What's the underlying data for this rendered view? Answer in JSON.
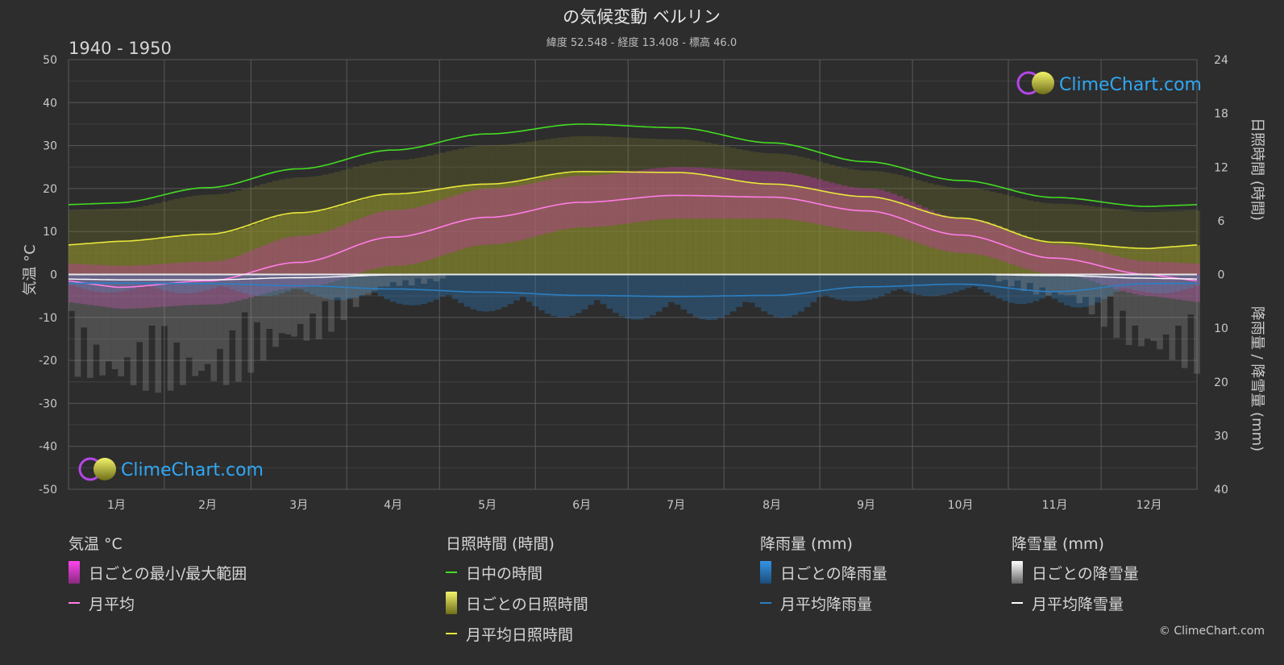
{
  "header": {
    "title": "の気候変動 ベルリン",
    "subtitle": "緯度 52.548 - 経度 13.408 - 標高 46.0",
    "period": "1940 - 1950"
  },
  "axes": {
    "left_label": "気温 °C",
    "right_top_label": "日照時間 (時間)",
    "right_bottom_label": "降雨量 / 降雪量 (mm)",
    "left_ticks": [
      "50",
      "40",
      "30",
      "20",
      "10",
      "0",
      "-10",
      "-20",
      "-30",
      "-40",
      "-50"
    ],
    "right_top_ticks": [
      "24",
      "18",
      "12",
      "6",
      "0"
    ],
    "right_bottom_ticks": [
      "10",
      "20",
      "30",
      "40"
    ],
    "months": [
      "1月",
      "2月",
      "3月",
      "4月",
      "5月",
      "6月",
      "7月",
      "8月",
      "9月",
      "10月",
      "11月",
      "12月"
    ]
  },
  "logo": {
    "text": "ClimeChart.com"
  },
  "legend": {
    "temp": {
      "heading": "気温 °C",
      "range_label": "日ごとの最小/最大範囲",
      "avg_label": "月平均"
    },
    "sun": {
      "heading": "日照時間 (時間)",
      "daylight_label": "日中の時間",
      "daily_label": "日ごとの日照時間",
      "avg_label": "月平均日照時間"
    },
    "rain": {
      "heading": "降雨量 (mm)",
      "daily_label": "日ごとの降雨量",
      "avg_label": "月平均降雨量"
    },
    "snow": {
      "heading": "降雪量 (mm)",
      "daily_label": "日ごとの降雪量",
      "avg_label": "月平均降雪量"
    }
  },
  "copyright": "© ClimeChart.com",
  "colors": {
    "background": "#2d2d2d",
    "grid": "#555555",
    "daylight": "#44dd22",
    "sunshine_avg": "#e8e83a",
    "sunshine_band": "#8f8f2e",
    "temp_band": "#c03aa8",
    "temp_avg": "#ff7ce6",
    "rain": "#2b7fc4",
    "snow": "#9a9a9a",
    "snow_avg": "#ffffff"
  },
  "chart_data": {
    "type": "line",
    "categories": [
      "1月",
      "2月",
      "3月",
      "4月",
      "5月",
      "6月",
      "7月",
      "8月",
      "9月",
      "10月",
      "11月",
      "12月"
    ],
    "temp_ylim": [
      -50,
      50
    ],
    "sun_ylim": [
      0,
      24
    ],
    "precip_ylim": [
      0,
      40
    ],
    "series": [
      {
        "name": "日中の時間",
        "axis": "sunshine_hours",
        "values": [
          8.0,
          9.7,
          11.8,
          13.9,
          15.7,
          16.8,
          16.4,
          14.7,
          12.6,
          10.5,
          8.6,
          7.6
        ]
      },
      {
        "name": "月平均日照時間",
        "axis": "sunshine_hours",
        "values": [
          3.7,
          4.5,
          6.9,
          9.0,
          10.1,
          11.5,
          11.4,
          10.1,
          8.7,
          6.3,
          3.6,
          2.9
        ]
      },
      {
        "name": "月平均",
        "axis": "temperature_c",
        "values": [
          -3.0,
          -1.5,
          2.8,
          8.7,
          13.3,
          16.8,
          18.4,
          18.0,
          14.8,
          9.2,
          3.8,
          0.0
        ]
      },
      {
        "name": "月平均降雨量",
        "axis": "precip_mm",
        "values": [
          1.6,
          1.7,
          2.1,
          2.7,
          3.3,
          3.9,
          4.1,
          3.9,
          2.3,
          1.8,
          3.2,
          1.7
        ]
      },
      {
        "name": "月平均降雪量",
        "axis": "precip_mm",
        "values": [
          1.0,
          1.0,
          0.6,
          0.1,
          0.0,
          0.0,
          0.0,
          0.0,
          0.0,
          0.0,
          0.2,
          0.7
        ]
      },
      {
        "name": "日ごとの最小/最大範囲",
        "axis": "temperature_c",
        "min": [
          -8,
          -7,
          -3,
          2,
          7,
          11,
          13,
          13,
          10,
          5,
          0,
          -5
        ],
        "max": [
          2,
          3,
          9,
          15,
          20,
          23,
          25,
          24,
          20,
          13,
          7,
          3
        ]
      }
    ]
  }
}
